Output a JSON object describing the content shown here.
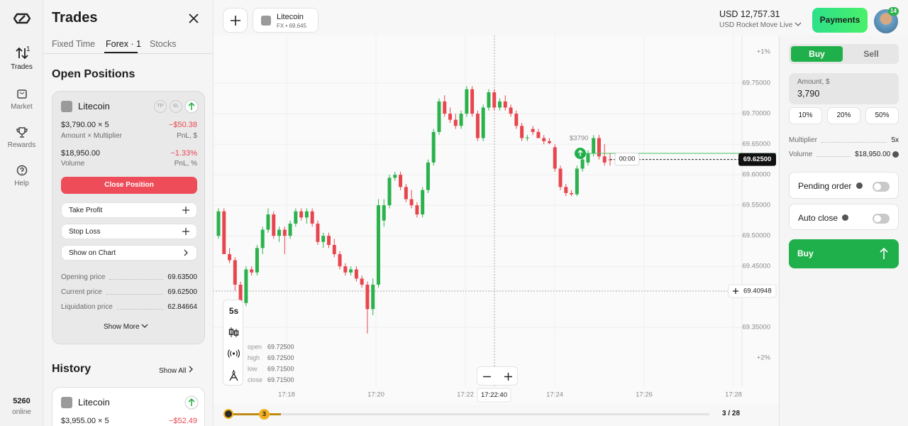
{
  "nav": {
    "items": [
      {
        "label": "Trades",
        "badge": "1"
      },
      {
        "label": "Market"
      },
      {
        "label": "Rewards"
      },
      {
        "label": "Help"
      }
    ],
    "online_count": "5260",
    "online_label": "online"
  },
  "panel": {
    "title": "Trades",
    "tabs": [
      "Fixed Time",
      "Forex · 1",
      "Stocks"
    ],
    "open_positions_title": "Open Positions",
    "position": {
      "asset": "Litecoin",
      "tp": "TP",
      "sl": "SL",
      "amount": "$3,790.00 × 5",
      "pnl": "−$50.38",
      "amount_caption": "Amount × Multiplier",
      "pnl_caption": "PnL, $",
      "volume": "$18,950.00",
      "pnl_pct": "−1.33%",
      "volume_caption": "Volume",
      "pnl_pct_caption": "PnL, %",
      "close_button": "Close Position",
      "actions": [
        "Take Profit",
        "Stop Loss",
        "Show on Chart"
      ],
      "details": [
        [
          "Opening price",
          "69.63500"
        ],
        [
          "Current price",
          "69.62500"
        ],
        [
          "Liquidation price",
          "62.84664"
        ]
      ],
      "show_more": "Show More"
    },
    "history_title": "History",
    "show_all": "Show All",
    "history": {
      "asset": "Litecoin",
      "amount": "$3,955.00 × 5",
      "pnl": "−$52.49"
    }
  },
  "topbar": {
    "asset": "Litecoin",
    "asset_sub": "FX • 69.645",
    "balance": "USD 12,757.31",
    "account": "USD Rocket Move Live",
    "payments": "Payments",
    "avatar_badge": "14"
  },
  "chart_data": {
    "type": "candlestick",
    "up_color": "#2bb24c",
    "down_color": "#e8464f",
    "grid": true,
    "ylim": [
      69.2525,
      69.828
    ],
    "yticks": [
      {
        "value": 69.75,
        "label": "69.75000"
      },
      {
        "value": 69.7,
        "label": "69.70000"
      },
      {
        "value": 69.65,
        "label": "69.65000"
      },
      {
        "value": 69.6,
        "label": "69.60000"
      },
      {
        "value": 69.55,
        "label": "69.55000"
      },
      {
        "value": 69.5,
        "label": "69.50000"
      },
      {
        "value": 69.45,
        "label": "69.45000"
      },
      {
        "value": 69.35,
        "label": "69.35000"
      }
    ],
    "pct_top": "+1%",
    "pct_bottom": "+2%",
    "time_labels": [
      "17:18",
      "17:20",
      "17:22",
      "17:24",
      "17:26",
      "17:28"
    ],
    "candles": [
      [
        69.5,
        69.545,
        69.495,
        69.54
      ],
      [
        69.54,
        69.545,
        69.47,
        69.47
      ],
      [
        69.47,
        69.48,
        69.455,
        69.46
      ],
      [
        69.46,
        69.465,
        69.41,
        69.42
      ],
      [
        69.42,
        69.425,
        69.385,
        69.39
      ],
      [
        69.39,
        69.45,
        69.385,
        69.445
      ],
      [
        69.445,
        69.45,
        69.435,
        69.44
      ],
      [
        69.44,
        69.485,
        69.435,
        69.48
      ],
      [
        69.48,
        69.515,
        69.47,
        69.51
      ],
      [
        69.51,
        69.545,
        69.505,
        69.535
      ],
      [
        69.535,
        69.54,
        69.495,
        69.5
      ],
      [
        69.5,
        69.515,
        69.49,
        69.51
      ],
      [
        69.51,
        69.515,
        69.47,
        69.5
      ],
      [
        69.5,
        69.525,
        69.495,
        69.52
      ],
      [
        69.52,
        69.545,
        69.515,
        69.54
      ],
      [
        69.54,
        69.545,
        69.525,
        69.53
      ],
      [
        69.53,
        69.545,
        69.52,
        69.54
      ],
      [
        69.54,
        69.545,
        69.515,
        69.52
      ],
      [
        69.52,
        69.525,
        69.485,
        69.49
      ],
      [
        69.49,
        69.505,
        69.48,
        69.5
      ],
      [
        69.5,
        69.505,
        69.48,
        69.485
      ],
      [
        69.485,
        69.495,
        69.465,
        69.47
      ],
      [
        69.47,
        69.475,
        69.445,
        69.45
      ],
      [
        69.45,
        69.455,
        69.435,
        69.44
      ],
      [
        69.44,
        69.45,
        69.435,
        69.445
      ],
      [
        69.445,
        69.45,
        69.425,
        69.43
      ],
      [
        69.43,
        69.435,
        69.415,
        69.42
      ],
      [
        69.42,
        69.425,
        69.34,
        69.38
      ],
      [
        69.38,
        69.43,
        69.37,
        69.42
      ],
      [
        69.42,
        69.56,
        69.415,
        69.55
      ],
      [
        69.525,
        69.56,
        69.515,
        69.55
      ],
      [
        69.55,
        69.6,
        69.545,
        69.595
      ],
      [
        69.595,
        69.605,
        69.59,
        69.6
      ],
      [
        69.6,
        69.605,
        69.575,
        69.58
      ],
      [
        69.58,
        69.585,
        69.555,
        69.56
      ],
      [
        69.56,
        69.575,
        69.545,
        69.55
      ],
      [
        69.55,
        69.555,
        69.53,
        69.535
      ],
      [
        69.535,
        69.58,
        69.53,
        69.575
      ],
      [
        69.575,
        69.625,
        69.57,
        69.62
      ],
      [
        69.62,
        69.675,
        69.615,
        69.67
      ],
      [
        69.67,
        69.725,
        69.665,
        69.72
      ],
      [
        69.72,
        69.73,
        69.695,
        69.7
      ],
      [
        69.7,
        69.71,
        69.685,
        69.69
      ],
      [
        69.69,
        69.7,
        69.675,
        69.68
      ],
      [
        69.68,
        69.705,
        69.675,
        69.7
      ],
      [
        69.7,
        69.745,
        69.695,
        69.74
      ],
      [
        69.74,
        69.745,
        69.695,
        69.7
      ],
      [
        69.7,
        69.705,
        69.655,
        69.66
      ],
      [
        69.66,
        69.715,
        69.655,
        69.71
      ],
      [
        69.71,
        69.74,
        69.705,
        69.735
      ],
      [
        69.735,
        69.74,
        69.705,
        69.71
      ],
      [
        69.71,
        69.725,
        69.705,
        69.72
      ],
      [
        69.72,
        69.73,
        69.705,
        69.71
      ],
      [
        69.71,
        69.715,
        69.695,
        69.7
      ],
      [
        69.7,
        69.705,
        69.675,
        69.68
      ],
      [
        69.68,
        69.685,
        69.655,
        69.66
      ],
      [
        69.66,
        69.665,
        69.655,
        69.661
      ],
      [
        69.675,
        69.68,
        69.665,
        69.67
      ],
      [
        69.67,
        69.675,
        69.66,
        69.66
      ],
      [
        69.66,
        69.665,
        69.65,
        69.655
      ],
      [
        69.655,
        69.66,
        69.65,
        69.652
      ],
      [
        69.645,
        69.65,
        69.605,
        69.61
      ],
      [
        69.61,
        69.615,
        69.575,
        69.58
      ],
      [
        69.58,
        69.585,
        69.565,
        69.57
      ],
      [
        69.57,
        69.575,
        69.565,
        69.568
      ],
      [
        69.568,
        69.615,
        69.565,
        69.61
      ],
      [
        69.61,
        69.63,
        69.605,
        69.625
      ],
      [
        69.62,
        69.64,
        69.615,
        69.635
      ],
      [
        69.635,
        69.665,
        69.63,
        69.66
      ],
      [
        69.66,
        69.665,
        69.625,
        69.63
      ],
      [
        69.63,
        69.65,
        69.615,
        69.62
      ],
      [
        69.625,
        69.635,
        69.615,
        69.625
      ]
    ],
    "current_price": {
      "value": 69.625,
      "label": "69.62500"
    },
    "crosshair": {
      "value": 69.40948,
      "label": "69.40948",
      "time": "17:22:40"
    },
    "position": {
      "price": 69.635,
      "amount_label": "$3790",
      "timer": "00:00"
    },
    "ohlc": [
      [
        "open",
        "69.72500"
      ],
      [
        "high",
        "69.72500"
      ],
      [
        "low",
        "69.71500"
      ],
      [
        "close",
        "69.71500"
      ]
    ]
  },
  "chart_tools": {
    "interval": "5s"
  },
  "timeline": {
    "marker": "3",
    "count": "3 / 28"
  },
  "order": {
    "buy_tab": "Buy",
    "sell_tab": "Sell",
    "amount_label": "Amount, $",
    "amount": "3,790",
    "presets": [
      "10%",
      "20%",
      "50%"
    ],
    "multiplier_label": "Multiplier",
    "multiplier": "5x",
    "volume_label": "Volume",
    "volume": "$18,950.00",
    "pending_order": "Pending order",
    "auto_close": "Auto close",
    "buy_button": "Buy"
  }
}
